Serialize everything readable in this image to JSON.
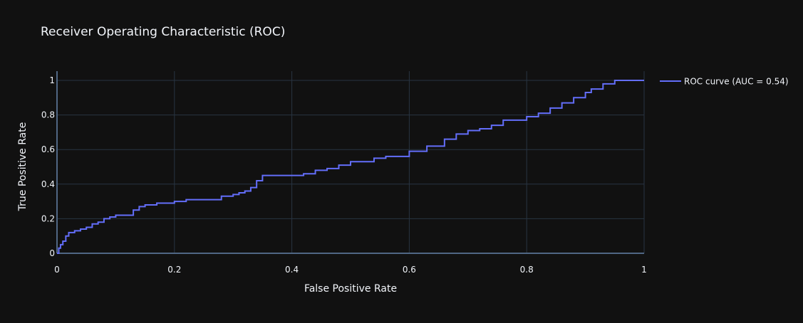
{
  "chart_data": {
    "type": "line",
    "title": "Receiver Operating Characteristic (ROC)",
    "xlabel": "False Positive Rate",
    "ylabel": "True Positive Rate",
    "xlim": [
      0,
      1
    ],
    "ylim": [
      0,
      1
    ],
    "grid": true,
    "legend_position": "top-right",
    "x_ticks": [
      "0",
      "0.2",
      "0.4",
      "0.6",
      "0.8",
      "1"
    ],
    "y_ticks": [
      "0",
      "0.2",
      "0.4",
      "0.6",
      "0.8",
      "1"
    ],
    "colors": {
      "background": "#111111",
      "grid": "#283442",
      "series": "#636efa",
      "text": "#f2f5fa"
    },
    "series": [
      {
        "name": "ROC curve (AUC = 0.54)",
        "x": [
          0,
          0.003,
          0.006,
          0.01,
          0.015,
          0.02,
          0.03,
          0.04,
          0.05,
          0.06,
          0.07,
          0.08,
          0.09,
          0.1,
          0.11,
          0.13,
          0.14,
          0.15,
          0.17,
          0.2,
          0.22,
          0.25,
          0.28,
          0.3,
          0.31,
          0.32,
          0.33,
          0.34,
          0.35,
          0.36,
          0.38,
          0.42,
          0.44,
          0.46,
          0.48,
          0.5,
          0.54,
          0.56,
          0.6,
          0.63,
          0.66,
          0.68,
          0.7,
          0.72,
          0.74,
          0.76,
          0.8,
          0.82,
          0.84,
          0.86,
          0.88,
          0.9,
          0.91,
          0.93,
          0.95,
          1.0
        ],
        "y": [
          0,
          0.03,
          0.05,
          0.07,
          0.1,
          0.12,
          0.13,
          0.14,
          0.15,
          0.17,
          0.18,
          0.2,
          0.21,
          0.22,
          0.22,
          0.25,
          0.27,
          0.28,
          0.29,
          0.3,
          0.31,
          0.31,
          0.33,
          0.34,
          0.35,
          0.36,
          0.38,
          0.42,
          0.45,
          0.45,
          0.45,
          0.46,
          0.48,
          0.49,
          0.51,
          0.53,
          0.55,
          0.56,
          0.59,
          0.62,
          0.66,
          0.69,
          0.71,
          0.72,
          0.74,
          0.77,
          0.79,
          0.81,
          0.84,
          0.87,
          0.9,
          0.93,
          0.95,
          0.98,
          1.0,
          1.0
        ]
      }
    ]
  }
}
